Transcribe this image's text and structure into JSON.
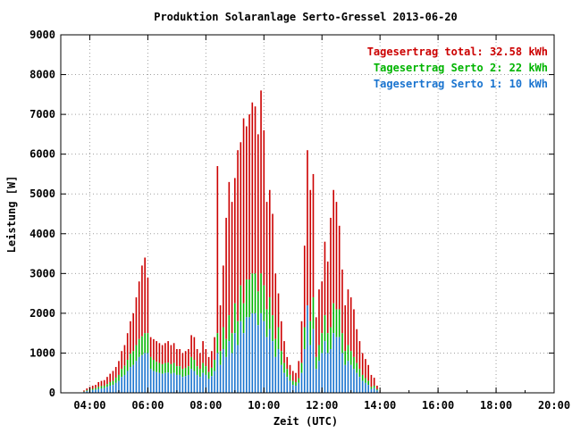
{
  "chart_data": {
    "type": "bar",
    "title": "Produktion Solaranlage Serto-Gressel 2013-06-20",
    "xlabel": "Zeit (UTC)",
    "ylabel": "Leistung [W]",
    "xlim_hours": [
      3.0,
      20.0
    ],
    "ylim": [
      0,
      9000
    ],
    "x_ticks": [
      "04:00",
      "06:00",
      "08:00",
      "10:00",
      "12:00",
      "14:00",
      "16:00",
      "18:00",
      "20:00"
    ],
    "y_ticks": [
      "0",
      "1000",
      "2000",
      "3000",
      "4000",
      "5000",
      "6000",
      "7000",
      "8000",
      "9000"
    ],
    "grid": true,
    "stacked": true,
    "legend_position": "top-right",
    "colors": {
      "serto1": "#1a74cf",
      "serto2": "#00b400",
      "total": "#cc0000"
    },
    "legend": [
      {
        "text": "Tagesertrag total: 32.58 kWh",
        "color": "#cc0000"
      },
      {
        "text": "Tagesertrag Serto 2: 22 kWh",
        "color": "#00b400"
      },
      {
        "text": "Tagesertrag Serto 1: 10 kWh",
        "color": "#1a74cf"
      }
    ],
    "time_start_hour": 3.8,
    "time_step_hour": 0.1,
    "serto1_values": [
      20,
      40,
      60,
      70,
      80,
      100,
      110,
      120,
      150,
      180,
      200,
      250,
      300,
      400,
      450,
      550,
      650,
      700,
      800,
      900,
      950,
      1000,
      1000,
      600,
      550,
      520,
      500,
      480,
      500,
      510,
      480,
      500,
      450,
      450,
      400,
      420,
      450,
      600,
      550,
      450,
      400,
      500,
      450,
      350,
      420,
      550,
      1000,
      700,
      1100,
      900,
      1300,
      1000,
      1500,
      1200,
      1800,
      1500,
      1900,
      1900,
      2000,
      2000,
      1700,
      2000,
      1800,
      1400,
      1600,
      1300,
      900,
      1100,
      700,
      500,
      400,
      300,
      200,
      180,
      250,
      500,
      1100,
      2300,
      1200,
      1600,
      600,
      800,
      1000,
      1300,
      1000,
      1100,
      1500,
      1400,
      1400,
      1000,
      700,
      800,
      700,
      600,
      500,
      400,
      300,
      250,
      200,
      100,
      120,
      60
    ],
    "serto2_values": [
      30,
      60,
      90,
      100,
      120,
      150,
      170,
      180,
      220,
      270,
      300,
      380,
      450,
      600,
      680,
      830,
      980,
      1050,
      1200,
      1350,
      1420,
      1500,
      1500,
      900,
      830,
      780,
      750,
      720,
      750,
      760,
      720,
      750,
      670,
      670,
      600,
      630,
      670,
      900,
      830,
      670,
      600,
      750,
      670,
      520,
      630,
      830,
      1500,
      1050,
      1650,
      1350,
      1950,
      1500,
      2250,
      1800,
      2700,
      2250,
      2850,
      2850,
      3000,
      3000,
      2550,
      3000,
      2700,
      2100,
      2400,
      1950,
      1350,
      1650,
      1050,
      750,
      600,
      450,
      300,
      270,
      370,
      750,
      1650,
      2200,
      1800,
      2400,
      900,
      1200,
      1500,
      1950,
      1500,
      1650,
      2250,
      2100,
      2100,
      1500,
      1050,
      1200,
      1050,
      900,
      750,
      600,
      450,
      370,
      300,
      150,
      180,
      90
    ],
    "total_values": [
      60,
      110,
      150,
      180,
      200,
      270,
      300,
      320,
      400,
      480,
      550,
      650,
      800,
      1050,
      1200,
      1500,
      1800,
      2000,
      2400,
      2800,
      3200,
      3400,
      2900,
      1400,
      1350,
      1300,
      1250,
      1200,
      1250,
      1300,
      1200,
      1250,
      1100,
      1100,
      1000,
      1050,
      1100,
      1450,
      1400,
      1100,
      1000,
      1300,
      1100,
      900,
      1050,
      1400,
      5700,
      2200,
      3200,
      4400,
      5300,
      4800,
      5400,
      6100,
      6300,
      6900,
      6700,
      7000,
      7300,
      7200,
      6500,
      7600,
      6600,
      4800,
      5100,
      4500,
      3000,
      2500,
      1800,
      1300,
      900,
      700,
      550,
      500,
      800,
      1800,
      3700,
      6100,
      5100,
      5500,
      1900,
      2600,
      2800,
      3800,
      3300,
      4400,
      5100,
      4800,
      4200,
      3100,
      2200,
      2600,
      2400,
      2100,
      1600,
      1300,
      1000,
      850,
      700,
      450,
      380,
      180
    ]
  }
}
